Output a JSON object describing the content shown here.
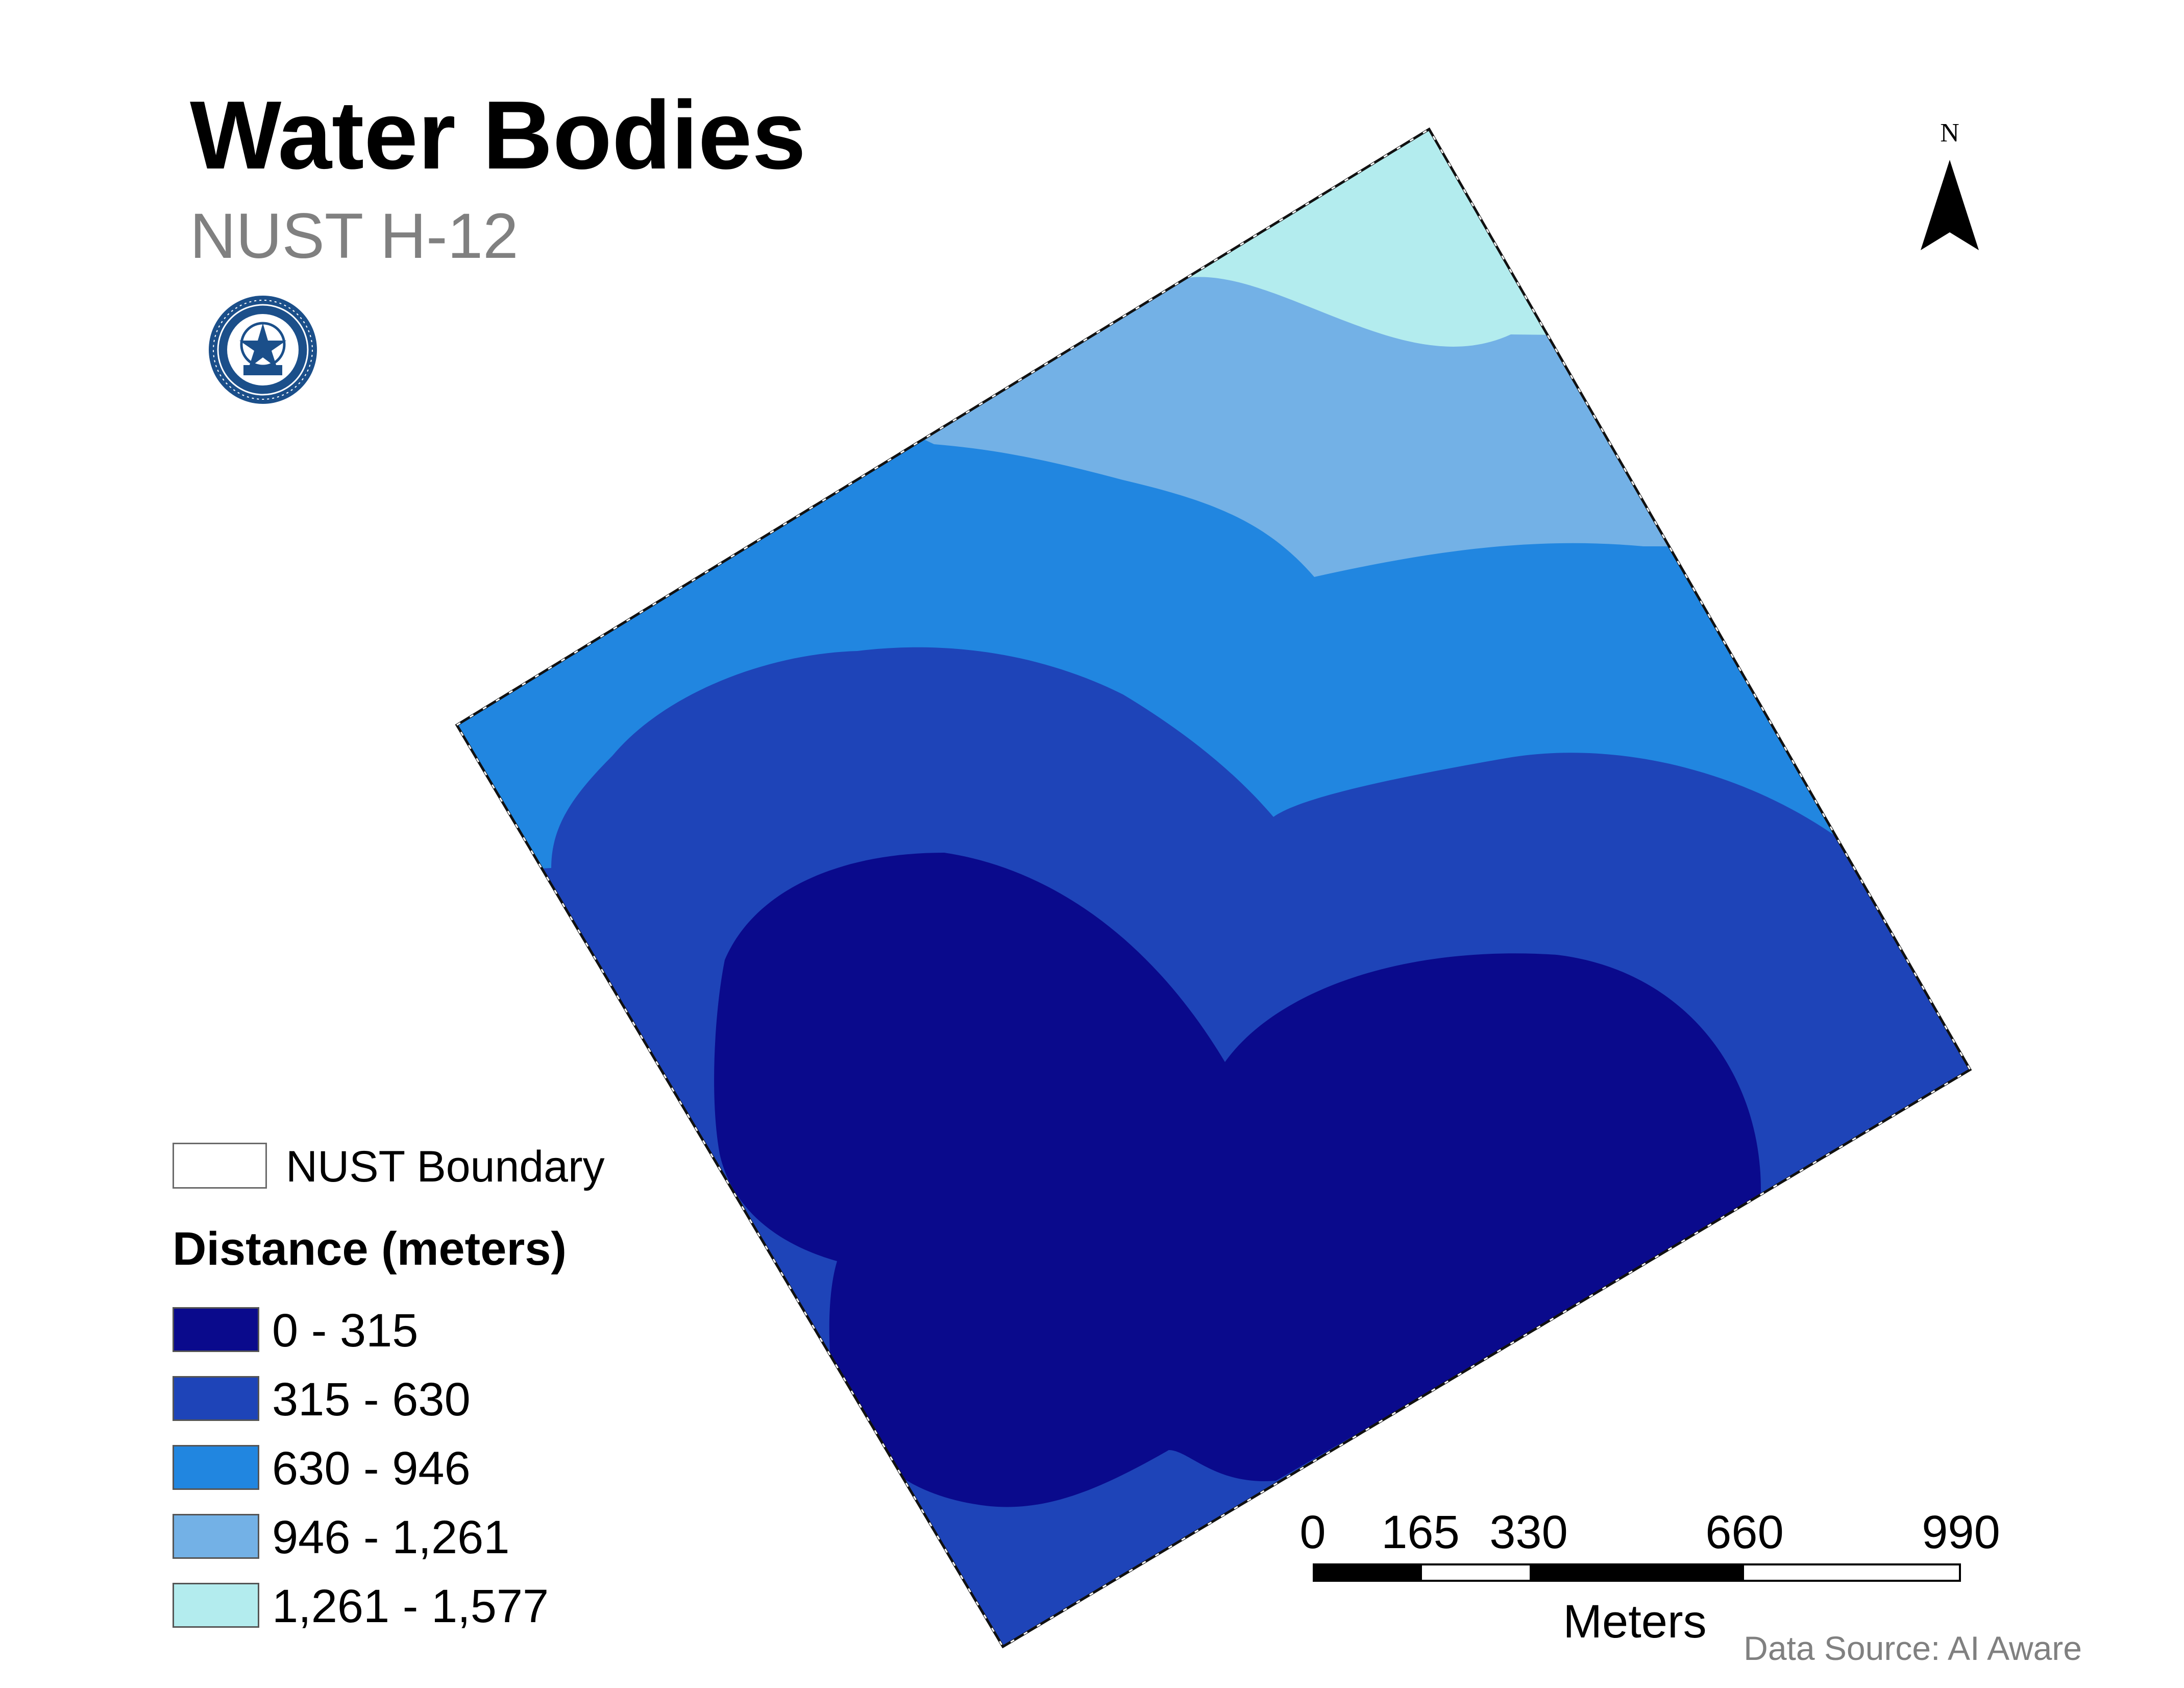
{
  "header": {
    "title": "Water Bodies",
    "subtitle": "NUST H-12"
  },
  "logo": {
    "icon": "university-seal-icon",
    "color": "#1b4f8a"
  },
  "north_arrow": {
    "label": "N"
  },
  "map": {
    "boundary_label": "NUST Boundary",
    "boundary_color": "#ffffff",
    "zones": [
      {
        "range": "0 - 315",
        "color": "#0a0a8c"
      },
      {
        "range": "315 - 630",
        "color": "#1e44b8"
      },
      {
        "range": "630 - 946",
        "color": "#2186e0"
      },
      {
        "range": "946 - 1,261",
        "color": "#73b1e6"
      },
      {
        "range": "1,261 - 1,577",
        "color": "#b3ecee"
      }
    ]
  },
  "legend": {
    "heading": "Distance (meters)",
    "boundary_label": "NUST Boundary"
  },
  "scale_bar": {
    "ticks": [
      "0",
      "165",
      "330",
      "660",
      "990"
    ],
    "tick_values": [
      0,
      165,
      330,
      660,
      990
    ],
    "unit": "Meters"
  },
  "source": "Data Source: AI Aware"
}
